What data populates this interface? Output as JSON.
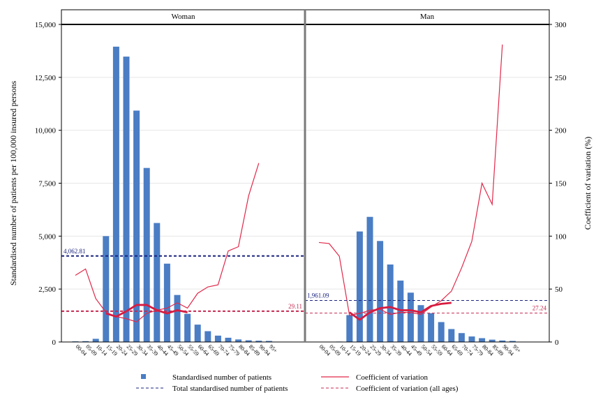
{
  "chart_data": {
    "type": "bar",
    "ylabel_left": "Standardised number of patients per 100,000 insured persons",
    "ylabel_right": "Coefficient of variation (%)",
    "ylim_left": [
      0,
      15000
    ],
    "ylim_right": [
      0,
      300
    ],
    "yticks_left": [
      "0",
      "2,500",
      "5,000",
      "7,500",
      "10,000",
      "12,500",
      "15,000"
    ],
    "yticks_left_values": [
      0,
      2500,
      5000,
      7500,
      10000,
      12500,
      15000
    ],
    "yticks_right": [
      "0",
      "50",
      "100",
      "150",
      "200",
      "250",
      "300"
    ],
    "yticks_right_values": [
      0,
      50,
      100,
      150,
      200,
      250,
      300
    ],
    "categories": [
      "00-04",
      "05-09",
      "10-14",
      "15-19",
      "20-24",
      "25-29",
      "30-34",
      "35-39",
      "40-44",
      "45-49",
      "50-54",
      "55-59",
      "60-64",
      "65-69",
      "70-74",
      "75-79",
      "80-84",
      "85-89",
      "90-94",
      "95+"
    ],
    "grid": true,
    "legend_position": "bottom",
    "colors": {
      "bars": "#4a7dc4",
      "cv_line": "#e0294a",
      "cv_bold_line": "#d81b3f",
      "total_line": "#1a237e",
      "cv_all_line": "#c62850"
    },
    "panels": [
      {
        "title": "Woman",
        "bars": [
          30,
          40,
          150,
          5000,
          13950,
          13480,
          10930,
          8220,
          5620,
          3700,
          2220,
          1330,
          820,
          510,
          300,
          200,
          120,
          80,
          60,
          50
        ],
        "cv": [
          63,
          69,
          41,
          28,
          24,
          22,
          19,
          27,
          30,
          32,
          37,
          32,
          46,
          52,
          54,
          86,
          90,
          138,
          169
        ],
        "cv_bold": [
          null,
          null,
          null,
          27,
          24,
          29,
          35,
          35,
          30,
          27,
          30,
          28
        ],
        "total": 4062.81,
        "total_label": "4,062.81",
        "cv_all": 29.11,
        "cv_all_label": "29.11"
      },
      {
        "title": "Man",
        "bars": [
          0,
          0,
          20,
          1270,
          5220,
          5910,
          4770,
          3660,
          2900,
          2330,
          1740,
          1360,
          940,
          610,
          420,
          260,
          180,
          110,
          70,
          50
        ],
        "cv": [
          94,
          93,
          81,
          25,
          27,
          30,
          31,
          26,
          28,
          28,
          26,
          33,
          39,
          48,
          70,
          95,
          150,
          130,
          281
        ],
        "cv_bold": [
          null,
          null,
          null,
          28,
          21,
          28,
          32,
          33,
          30,
          30,
          28,
          34,
          36,
          37
        ],
        "total": 1961.09,
        "total_label": "1,961.09",
        "cv_all": 27.24,
        "cv_all_label": "27.24"
      }
    ],
    "legend": [
      {
        "key": "bars",
        "label": "Standardised number of patients"
      },
      {
        "key": "cv",
        "label": "Coefficient of variation"
      },
      {
        "key": "total",
        "label": "Total standardised number of patients"
      },
      {
        "key": "cv_all",
        "label": "Coefficient of variation (all ages)"
      }
    ]
  }
}
